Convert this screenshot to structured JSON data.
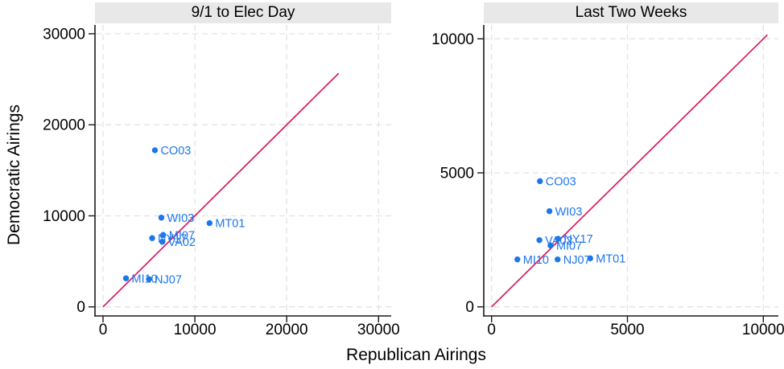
{
  "figure": {
    "y_axis_title": "Democratic Airings",
    "x_axis_title": "Republican Airings"
  },
  "colors": {
    "point": "#1e76eb",
    "point_label": "#1e76eb",
    "ref_line": "#d91a5f",
    "grid": "#e3e3e3",
    "axis": "#1a1a1a",
    "band_bg": "#e8e8e8",
    "band_text": "#000000",
    "plot_bg": "#ffffff"
  },
  "chart_data": [
    {
      "type": "scatter",
      "title": "9/1 to Elec Day",
      "xlabel": "Republican Airings",
      "ylabel": "Democratic Airings",
      "xlim": [
        0,
        32000
      ],
      "ylim": [
        0,
        32000
      ],
      "x_ticks": [
        0,
        10000,
        20000,
        30000
      ],
      "y_ticks": [
        0,
        10000,
        20000,
        30000
      ],
      "grid": "dashed",
      "legend": "none",
      "ref_line": {
        "name": "45-degree line",
        "from_xy": [
          0,
          0
        ],
        "to_xy": [
          25650,
          25650
        ]
      },
      "points": [
        {
          "label": "NY17",
          "x": 5350,
          "y": 7550
        },
        {
          "label": "VA02",
          "x": 6450,
          "y": 7150
        },
        {
          "label": "MI07",
          "x": 6550,
          "y": 7900
        },
        {
          "label": "NJ07",
          "x": 5000,
          "y": 3050
        },
        {
          "label": "MI10",
          "x": 2500,
          "y": 3130
        },
        {
          "label": "CO03",
          "x": 5650,
          "y": 17200
        },
        {
          "label": "WI03",
          "x": 6350,
          "y": 9800
        },
        {
          "label": "MT01",
          "x": 11600,
          "y": 9200
        }
      ]
    },
    {
      "type": "scatter",
      "title": "Last Two Weeks",
      "xlabel": "Republican Airings",
      "ylabel": "Democratic Airings",
      "xlim": [
        0,
        10700
      ],
      "ylim": [
        0,
        10700
      ],
      "x_ticks": [
        0,
        5000,
        10000
      ],
      "y_ticks": [
        0,
        5000,
        10000
      ],
      "grid": "dashed",
      "legend": "none",
      "ref_line": {
        "name": "45-degree line",
        "from_xy": [
          0,
          0
        ],
        "to_xy": [
          10150,
          10150
        ]
      },
      "points": [
        {
          "label": "VA02",
          "x": 1760,
          "y": 2490
        },
        {
          "label": "NY17",
          "x": 2450,
          "y": 2540
        },
        {
          "label": "MI07",
          "x": 2170,
          "y": 2290
        },
        {
          "label": "NJ07",
          "x": 2430,
          "y": 1770
        },
        {
          "label": "MI10",
          "x": 950,
          "y": 1770
        },
        {
          "label": "MT01",
          "x": 3630,
          "y": 1810
        },
        {
          "label": "CO03",
          "x": 1780,
          "y": 4690
        },
        {
          "label": "WI03",
          "x": 2130,
          "y": 3570
        }
      ]
    }
  ]
}
